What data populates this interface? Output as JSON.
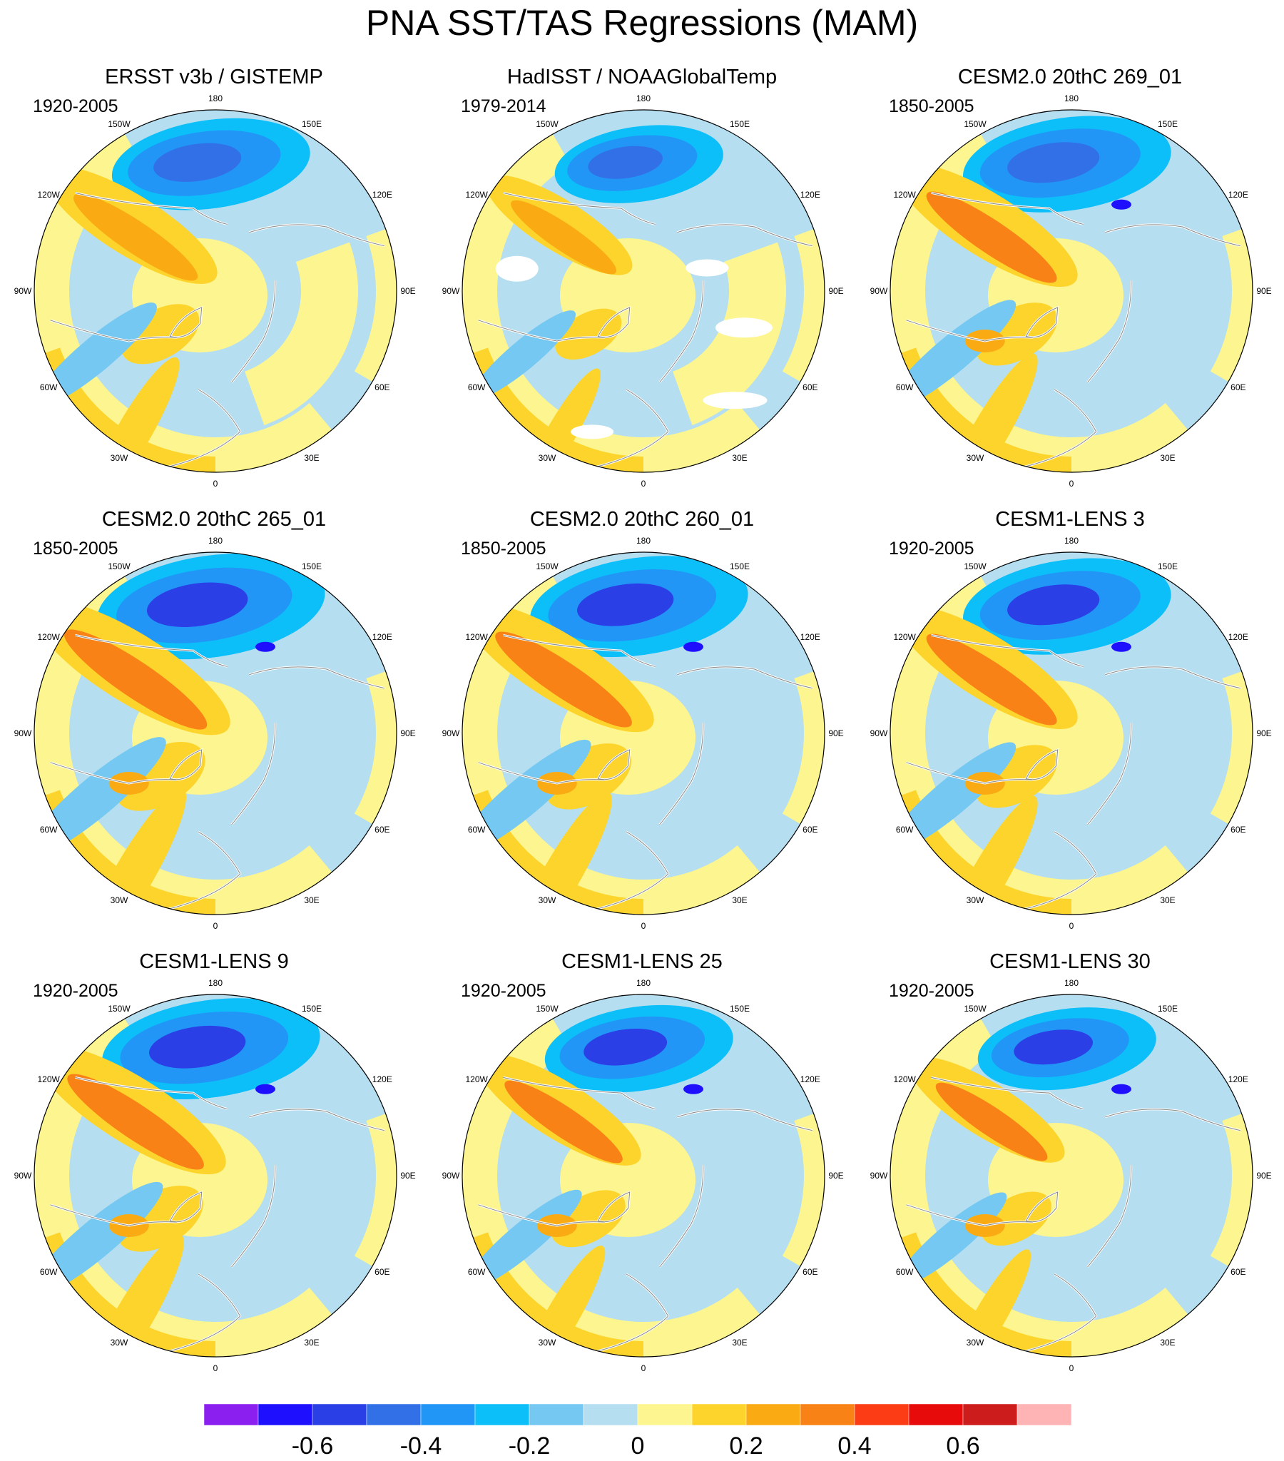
{
  "title": "PNA SST/TAS Regressions (MAM)",
  "panels": [
    {
      "title": "ERSST v3b / GISTEMP",
      "period": "1920-2005"
    },
    {
      "title": "HadISST / NOAAGlobalTemp",
      "period": "1979-2014"
    },
    {
      "title": "CESM2.0 20thC 269_01",
      "period": "1850-2005"
    },
    {
      "title": "CESM2.0 20thC 265_01",
      "period": "1850-2005"
    },
    {
      "title": "CESM2.0 20thC 260_01",
      "period": "1850-2005"
    },
    {
      "title": "CESM1-LENS 3",
      "period": "1920-2005"
    },
    {
      "title": "CESM1-LENS 9",
      "period": "1920-2005"
    },
    {
      "title": "CESM1-LENS 25",
      "period": "1920-2005"
    },
    {
      "title": "CESM1-LENS 30",
      "period": "1920-2005"
    }
  ],
  "longitude_labels": [
    {
      "label": "180",
      "lon": 180
    },
    {
      "label": "150E",
      "lon": 150
    },
    {
      "label": "120E",
      "lon": 120
    },
    {
      "label": "90E",
      "lon": 90
    },
    {
      "label": "60E",
      "lon": 60
    },
    {
      "label": "30E",
      "lon": 30
    },
    {
      "label": "0",
      "lon": 0
    },
    {
      "label": "30W",
      "lon": -30
    },
    {
      "label": "60W",
      "lon": -60
    },
    {
      "label": "90W",
      "lon": -90
    },
    {
      "label": "120W",
      "lon": -120
    },
    {
      "label": "150W",
      "lon": -150
    }
  ],
  "colorbar": {
    "colors": [
      "#8a1ff0",
      "#1e10ff",
      "#2b3fe6",
      "#3270e8",
      "#2196f7",
      "#0cbff9",
      "#74c8f2",
      "#b5def0",
      "#fdf58f",
      "#fdd42c",
      "#faab14",
      "#f98216",
      "#fb3c14",
      "#e80b0c",
      "#cc1c1c",
      "#feb3b4"
    ],
    "labels": [
      "-0.6",
      "-0.4",
      "-0.2",
      "0",
      "0.2",
      "0.4",
      "0.6"
    ],
    "label_values": [
      -0.6,
      -0.4,
      -0.2,
      0,
      0.2,
      0.4,
      0.6
    ],
    "levels": [
      -0.7,
      -0.6,
      -0.5,
      -0.4,
      -0.3,
      -0.2,
      -0.1,
      0,
      0.1,
      0.2,
      0.3,
      0.4,
      0.5,
      0.6,
      0.7
    ]
  }
}
